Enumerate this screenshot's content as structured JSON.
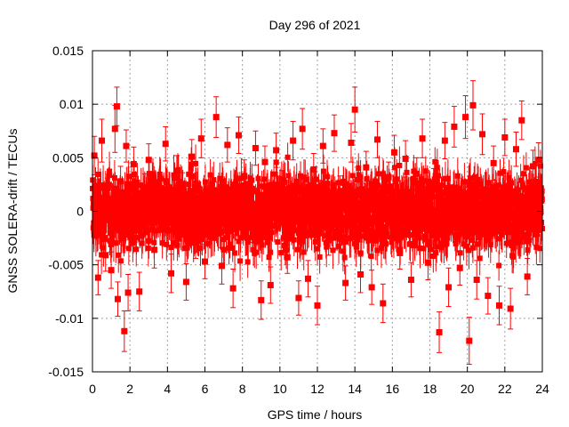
{
  "chart_data": {
    "type": "scatter",
    "title": "Day 296 of 2021",
    "xlabel": "GPS time / hours",
    "ylabel": "GNSS SOLERA-drift / TECUs",
    "xlim": [
      0,
      24
    ],
    "ylim": [
      -0.015,
      0.015
    ],
    "x_ticks": [
      0,
      2,
      4,
      6,
      8,
      10,
      12,
      14,
      16,
      18,
      20,
      22,
      24
    ],
    "x_tick_labels": [
      "0",
      "2",
      "4",
      "6",
      "8",
      "10",
      "12",
      "14",
      "16",
      "18",
      "20",
      "22",
      "24"
    ],
    "y_ticks": [
      -0.015,
      -0.01,
      -0.005,
      0,
      0.005,
      0.01,
      0.015
    ],
    "y_tick_labels": [
      "-0.015",
      "-0.01",
      "-0.005",
      "0",
      "0.005",
      "0.01",
      "0.015"
    ],
    "grid": true,
    "colors": {
      "series": "#ff0000",
      "grid": "#a0a0a0",
      "axes": "#000000"
    },
    "series": [
      {
        "marker": "square",
        "error_bars": true,
        "x": [
          0.1,
          0.3,
          0.5,
          0.7,
          0.8,
          1.0,
          1.2,
          1.3,
          1.35,
          1.5,
          1.7,
          1.8,
          1.9,
          2.2,
          2.5,
          2.8,
          3.0,
          3.3,
          3.6,
          3.9,
          4.2,
          4.5,
          4.8,
          5.0,
          5.3,
          5.5,
          5.8,
          6.0,
          6.3,
          6.6,
          6.9,
          7.2,
          7.5,
          7.8,
          8.1,
          8.4,
          8.7,
          9.0,
          9.2,
          9.5,
          9.8,
          10.1,
          10.4,
          10.7,
          11.0,
          11.2,
          11.5,
          11.8,
          12.0,
          12.3,
          12.6,
          12.9,
          13.2,
          13.5,
          13.8,
          14.0,
          14.3,
          14.6,
          14.9,
          15.2,
          15.5,
          15.8,
          16.1,
          16.4,
          16.7,
          17.0,
          17.3,
          17.6,
          17.9,
          18.2,
          18.5,
          18.8,
          19.0,
          19.3,
          19.6,
          19.9,
          20.1,
          20.3,
          20.5,
          20.8,
          21.1,
          21.4,
          21.7,
          22.0,
          22.3,
          22.6,
          22.9,
          23.2,
          23.5,
          23.8
        ],
        "y": [
          0.0052,
          -0.0062,
          0.0066,
          -0.0041,
          0.0012,
          -0.0055,
          0.0077,
          0.0098,
          -0.0082,
          0.0028,
          -0.0112,
          0.0061,
          -0.0076,
          0.0044,
          -0.0075,
          0.0021,
          0.0048,
          -0.0036,
          0.0009,
          0.0063,
          -0.0058,
          0.0037,
          0.0022,
          -0.0066,
          0.0051,
          -0.0029,
          0.0068,
          -0.0047,
          0.0014,
          0.0088,
          -0.0051,
          0.0062,
          -0.0072,
          0.0071,
          0.0033,
          -0.0015,
          0.0059,
          -0.0083,
          0.0046,
          -0.0069,
          0.0057,
          0.0024,
          -0.0043,
          0.0066,
          -0.0081,
          0.0077,
          -0.0063,
          0.0039,
          -0.0088,
          0.0061,
          -0.0027,
          0.0073,
          0.0018,
          -0.0067,
          0.0064,
          0.0095,
          -0.0059,
          0.0041,
          -0.0071,
          0.0067,
          -0.0086,
          0.0032,
          0.0055,
          -0.0039,
          0.0049,
          -0.0064,
          0.0035,
          0.0068,
          -0.0048,
          0.0026,
          -0.0113,
          0.0066,
          -0.0071,
          0.0079,
          -0.0053,
          0.0088,
          -0.0121,
          0.0099,
          -0.0064,
          0.0072,
          -0.0079,
          0.0045,
          -0.0088,
          0.0069,
          -0.0091,
          0.0058,
          0.0085,
          -0.0061,
          0.0042,
          0.0048
        ],
        "err": [
          0.0018,
          0.0016,
          0.002,
          0.0015,
          0.0019,
          0.0017,
          0.0022,
          0.0018,
          0.0016,
          0.0014,
          0.0019,
          0.0015,
          0.0017,
          0.0016,
          0.0018,
          0.0014,
          0.0015,
          0.0017,
          0.0013,
          0.0016,
          0.0018,
          0.0015,
          0.0014,
          0.0017,
          0.0016,
          0.0015,
          0.0018,
          0.0016,
          0.0014,
          0.0019,
          0.0017,
          0.0016,
          0.0018,
          0.0017,
          0.0015,
          0.0014,
          0.0016,
          0.0018,
          0.0015,
          0.0017,
          0.0016,
          0.0014,
          0.0015,
          0.0018,
          0.0016,
          0.0019,
          0.0017,
          0.0015,
          0.0018,
          0.0016,
          0.0014,
          0.0017,
          0.0015,
          0.0016,
          0.0018,
          0.0021,
          0.0017,
          0.0015,
          0.0016,
          0.0017,
          0.0018,
          0.0014,
          0.0016,
          0.0015,
          0.0017,
          0.0016,
          0.0015,
          0.0018,
          0.0016,
          0.0014,
          0.0019,
          0.0017,
          0.0018,
          0.0019,
          0.0016,
          0.002,
          0.0022,
          0.0023,
          0.0018,
          0.0019,
          0.0017,
          0.0016,
          0.0018,
          0.0017,
          0.0019,
          0.0016,
          0.0018,
          0.0017,
          0.0015,
          0.0016
        ]
      }
    ]
  }
}
